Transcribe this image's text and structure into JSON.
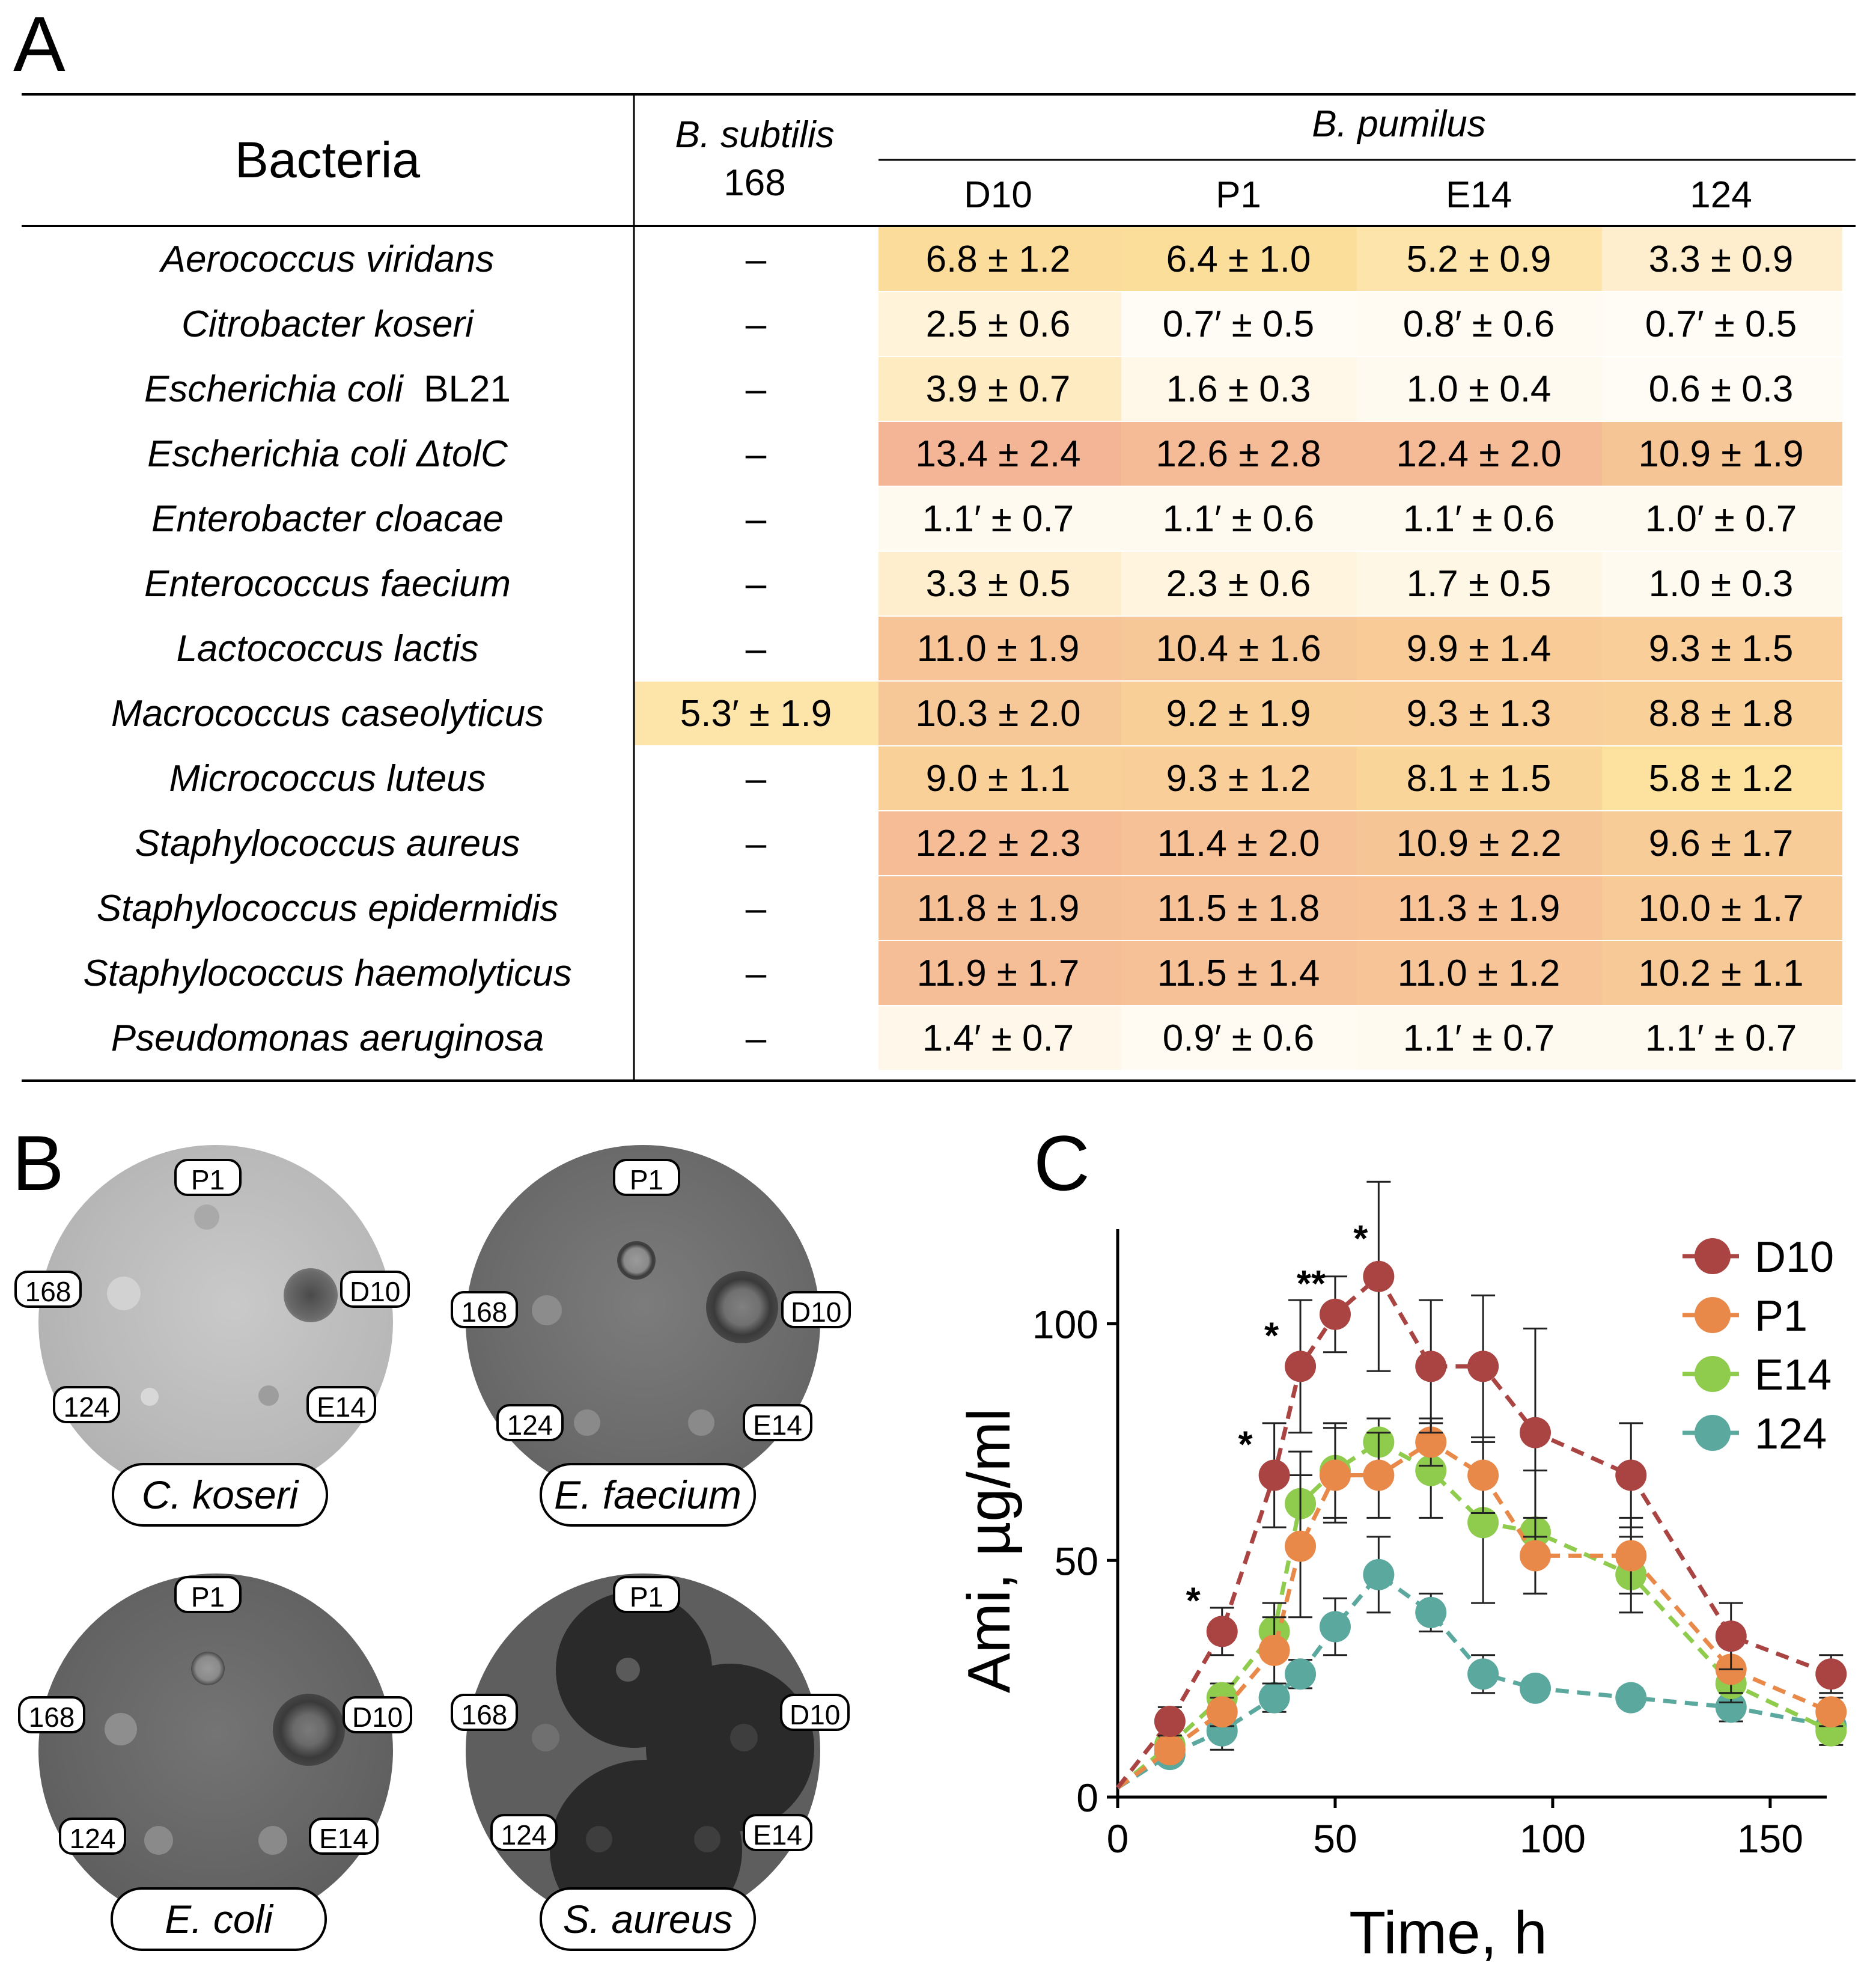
{
  "panels": {
    "a": "A",
    "b": "B",
    "c": "C"
  },
  "table": {
    "header_bacteria": "Bacteria",
    "header_subtilis_line1": "B. subtilis",
    "header_subtilis_line2": "168",
    "header_pumilus": "B. pumilus",
    "strain_headers": [
      "D10",
      "P1",
      "E14",
      "124"
    ],
    "rows": [
      {
        "name": "Aerococcus viridans",
        "suffix": "",
        "subtilis": "–",
        "subtilis_value": 0,
        "values": [
          "6.8 ± 1.2",
          "6.4 ± 1.0",
          "5.2 ± 0.9",
          "3.3 ± 0.9"
        ],
        "nums": [
          6.8,
          6.4,
          5.2,
          3.3
        ]
      },
      {
        "name": "Citrobacter koseri",
        "suffix": "",
        "subtilis": "–",
        "subtilis_value": 0,
        "values": [
          "2.5 ± 0.6",
          "0.7′ ± 0.5",
          "0.8′ ± 0.6",
          "0.7′ ± 0.5"
        ],
        "nums": [
          2.5,
          0.7,
          0.8,
          0.7
        ]
      },
      {
        "name": "Escherichia coli",
        "suffix": "BL21",
        "subtilis": "–",
        "subtilis_value": 0,
        "values": [
          "3.9 ± 0.7",
          "1.6 ± 0.3",
          "1.0 ± 0.4",
          "0.6 ± 0.3"
        ],
        "nums": [
          3.9,
          1.6,
          1.0,
          0.6
        ]
      },
      {
        "name": "Escherichia coli ΔtolC",
        "suffix": "",
        "subtilis": "–",
        "subtilis_value": 0,
        "values": [
          "13.4 ± 2.4",
          "12.6 ± 2.8",
          "12.4 ± 2.0",
          "10.9 ± 1.9"
        ],
        "nums": [
          13.4,
          12.6,
          12.4,
          10.9
        ]
      },
      {
        "name": "Enterobacter cloacae",
        "suffix": "",
        "subtilis": "–",
        "subtilis_value": 0,
        "values": [
          "1.1′ ± 0.7",
          "1.1′ ± 0.6",
          "1.1′ ± 0.6",
          "1.0′ ± 0.7"
        ],
        "nums": [
          1.1,
          1.1,
          1.1,
          1.0
        ]
      },
      {
        "name": "Enterococcus faecium",
        "suffix": "",
        "subtilis": "–",
        "subtilis_value": 0,
        "values": [
          "3.3 ± 0.5",
          "2.3 ± 0.6",
          "1.7 ± 0.5",
          "1.0 ± 0.3"
        ],
        "nums": [
          3.3,
          2.3,
          1.7,
          1.0
        ]
      },
      {
        "name": "Lactococcus lactis",
        "suffix": "",
        "subtilis": "–",
        "subtilis_value": 0,
        "values": [
          "11.0 ± 1.9",
          "10.4 ± 1.6",
          "9.9 ± 1.4",
          "9.3 ± 1.5"
        ],
        "nums": [
          11.0,
          10.4,
          9.9,
          9.3
        ]
      },
      {
        "name": "Macrococcus caseolyticus",
        "suffix": "",
        "subtilis": "5.3′ ± 1.9",
        "subtilis_value": 5.3,
        "values": [
          "10.3 ± 2.0",
          "9.2 ± 1.9",
          "9.3 ± 1.3",
          "8.8 ± 1.8"
        ],
        "nums": [
          10.3,
          9.2,
          9.3,
          8.8
        ]
      },
      {
        "name": "Micrococcus luteus",
        "suffix": "",
        "subtilis": "–",
        "subtilis_value": 0,
        "values": [
          "9.0 ± 1.1",
          "9.3 ± 1.2",
          "8.1 ± 1.5",
          "5.8 ± 1.2"
        ],
        "nums": [
          9.0,
          9.3,
          8.1,
          5.8
        ]
      },
      {
        "name": "Staphylococcus aureus",
        "suffix": "",
        "subtilis": "–",
        "subtilis_value": 0,
        "values": [
          "12.2 ± 2.3",
          "11.4 ± 2.0",
          "10.9 ± 2.2",
          "9.6 ± 1.7"
        ],
        "nums": [
          12.2,
          11.4,
          10.9,
          9.6
        ]
      },
      {
        "name": "Staphylococcus epidermidis",
        "suffix": "",
        "subtilis": "–",
        "subtilis_value": 0,
        "values": [
          "11.8 ± 1.9",
          "11.5 ± 1.8",
          "11.3 ± 1.9",
          "10.0 ± 1.7"
        ],
        "nums": [
          11.8,
          11.5,
          11.3,
          10.0
        ]
      },
      {
        "name": "Staphylococcus haemolyticus",
        "suffix": "",
        "subtilis": "–",
        "subtilis_value": 0,
        "values": [
          "11.9 ± 1.7",
          "11.5 ± 1.4",
          "11.0 ± 1.2",
          "10.2 ± 1.1"
        ],
        "nums": [
          11.9,
          11.5,
          11.0,
          10.2
        ]
      },
      {
        "name": "Pseudomonas aeruginosa",
        "suffix": "",
        "subtilis": "–",
        "subtilis_value": 0,
        "values": [
          "1.4′ ± 0.7",
          "0.9′ ± 0.6",
          "1.1′ ± 0.7",
          "1.1′ ± 0.7"
        ],
        "nums": [
          1.4,
          0.9,
          1.1,
          1.1
        ]
      }
    ]
  },
  "plates": [
    {
      "organism": "C. koseri",
      "labels": {
        "p1": "P1",
        "s168": "168",
        "d10": "D10",
        "s124": "124",
        "e14": "E14"
      }
    },
    {
      "organism": "E. faecium",
      "labels": {
        "p1": "P1",
        "s168": "168",
        "d10": "D10",
        "s124": "124",
        "e14": "E14"
      }
    },
    {
      "organism": "E. coli",
      "labels": {
        "p1": "P1",
        "s168": "168",
        "d10": "D10",
        "s124": "124",
        "e14": "E14"
      }
    },
    {
      "organism": "S. aureus",
      "labels": {
        "p1": "P1",
        "s168": "168",
        "d10": "D10",
        "s124": "124",
        "e14": "E14"
      }
    }
  ],
  "chart_data": {
    "type": "line",
    "title": "",
    "xlabel": "Time, h",
    "ylabel": "Ami, µg/ml",
    "xlim": [
      0,
      163
    ],
    "ylim": [
      0,
      120
    ],
    "xticks": [
      0,
      50,
      100,
      150
    ],
    "yticks": [
      0,
      50,
      100
    ],
    "legend_position": "top-right",
    "grid": false,
    "x": [
      12,
      24,
      36,
      42,
      50,
      60,
      72,
      84,
      96,
      118,
      141,
      164
    ],
    "series": [
      {
        "name": "D10",
        "color": "#a94442",
        "values": [
          16,
          35,
          68,
          91,
          102,
          110,
          91,
          91,
          77,
          68,
          34,
          26
        ],
        "errors": [
          3,
          5,
          11,
          14,
          8,
          20,
          14,
          15,
          22,
          11,
          7,
          4
        ]
      },
      {
        "name": "P1",
        "color": "#e8894a",
        "values": [
          10,
          18,
          31,
          53,
          68,
          68,
          75,
          68,
          51,
          51,
          27,
          18
        ],
        "errors": [
          2,
          3,
          7,
          15,
          10,
          9,
          5,
          8,
          8,
          8,
          5,
          3
        ]
      },
      {
        "name": "E14",
        "color": "#8fcc4e",
        "values": [
          11,
          21,
          35,
          62,
          69,
          75,
          69,
          58,
          56,
          47,
          24,
          14
        ],
        "errors": [
          2,
          3,
          6,
          11,
          10,
          5,
          10,
          17,
          13,
          8,
          4,
          3
        ]
      },
      {
        "name": "124",
        "color": "#5aa89e",
        "values": [
          9,
          14,
          21,
          26,
          36,
          47,
          39,
          26,
          23,
          21,
          19,
          15
        ],
        "errors": [
          2,
          4,
          3,
          3,
          6,
          8,
          4,
          4,
          2,
          2,
          3,
          2
        ]
      }
    ],
    "annotations": [
      {
        "text": "*",
        "series": "D10",
        "x": 24
      },
      {
        "text": "*",
        "series": "D10",
        "x": 36
      },
      {
        "text": "*",
        "series": "D10",
        "x": 42
      },
      {
        "text": "**",
        "series": "D10",
        "x": 50
      },
      {
        "text": "*",
        "series": "D10",
        "x": 60
      }
    ]
  }
}
